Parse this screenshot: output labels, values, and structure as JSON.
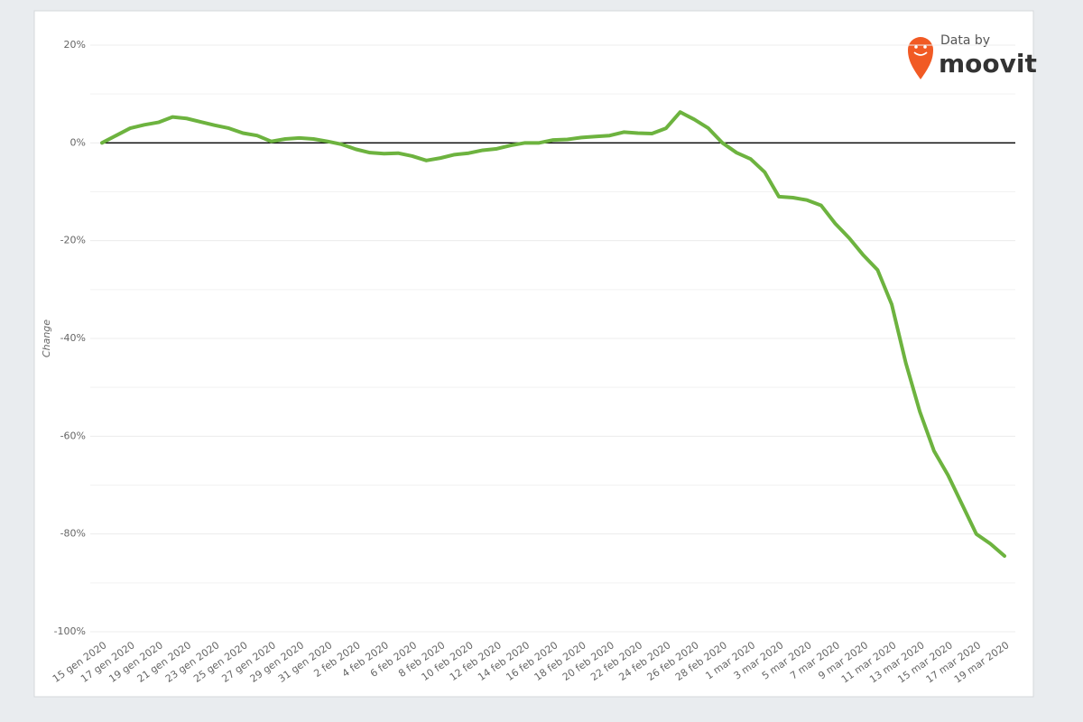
{
  "chart_data": {
    "type": "line",
    "ylabel": "Change",
    "logo": {
      "prefix": "Data by",
      "brand": "moovit"
    },
    "categories": [
      "15 gen 2020",
      null,
      "17 gen 2020",
      null,
      "19 gen 2020",
      null,
      "21 gen 2020",
      null,
      "23 gen 2020",
      null,
      "25 gen 2020",
      null,
      "27 gen 2020",
      null,
      "29 gen 2020",
      null,
      "31 gen 2020",
      null,
      "2 feb 2020",
      null,
      "4 feb 2020",
      null,
      "6 feb 2020",
      null,
      "8 feb 2020",
      null,
      "10 feb 2020",
      null,
      "12 feb 2020",
      null,
      "14 feb 2020",
      null,
      "16 feb 2020",
      null,
      "18 feb 2020",
      null,
      "20 feb 2020",
      null,
      "22 feb 2020",
      null,
      "24 feb 2020",
      null,
      "26 feb 2020",
      null,
      "28 feb 2020",
      null,
      "1 mar 2020",
      null,
      "3 mar 2020",
      null,
      "5 mar 2020",
      null,
      "7 mar 2020",
      null,
      "9 mar 2020",
      null,
      "11 mar 2020",
      null,
      "13 mar 2020",
      null,
      "15 mar 2020",
      null,
      "17 mar 2020",
      null,
      "19 mar 2020"
    ],
    "values": [
      0,
      1.5,
      3,
      3.7,
      4.2,
      5.3,
      5,
      4.3,
      3.6,
      3,
      2,
      1.5,
      0.3,
      0.8,
      1,
      0.8,
      0.3,
      -0.3,
      -1.3,
      -2,
      -2.2,
      -2.1,
      -2.7,
      -3.6,
      -3.1,
      -2.4,
      -2.1,
      -1.5,
      -1.2,
      -0.5,
      0,
      0,
      0.6,
      0.7,
      1.1,
      1.3,
      1.5,
      2.2,
      2,
      1.9,
      3,
      6.3,
      4.8,
      3,
      0,
      -2,
      -3.3,
      -6,
      -11,
      -11.2,
      -11.7,
      -12.8,
      -16.5,
      -19.5,
      -23,
      -26,
      -33,
      -45,
      -55,
      -63,
      -68,
      -74,
      -80,
      -82,
      -84.5
    ],
    "color": "#6db33f",
    "ylim": [
      -100,
      20
    ],
    "yticks": [
      {
        "value": 20,
        "label": "20%"
      },
      {
        "value": 0,
        "label": "0%"
      },
      {
        "value": -20,
        "label": "-20%"
      },
      {
        "value": -40,
        "label": "-40%"
      },
      {
        "value": -60,
        "label": "-60%"
      },
      {
        "value": -80,
        "label": "-80%"
      },
      {
        "value": -100,
        "label": "-100%"
      }
    ],
    "minor_yticks": [
      10,
      -10,
      -30,
      -50,
      -70,
      -90
    ],
    "zero_line": 0,
    "grid": true
  }
}
